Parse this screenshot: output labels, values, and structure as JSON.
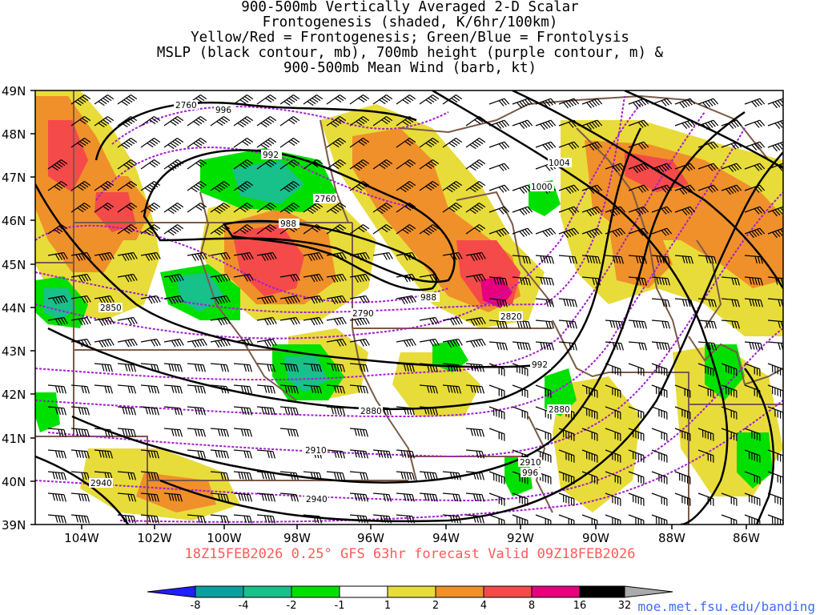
{
  "title_lines": [
    "900-500mb Vertically Averaged 2-D Scalar",
    "Frontogenesis (shaded, K/6hr/100km)",
    "Yellow/Red = Frontogenesis;  Green/Blue = Frontolysis",
    "MSLP (black contour, mb), 700mb height (purple contour, m) &",
    "900-500mb Mean Wind (barb, kt)"
  ],
  "valid_line": "18Z15FEB2026 0.25° GFS 63hr forecast Valid 09Z18FEB2026",
  "credit": "moe.met.fsu.edu/banding",
  "lat_labels": [
    "49N",
    "48N",
    "47N",
    "46N",
    "45N",
    "44N",
    "43N",
    "42N",
    "41N",
    "40N",
    "39N"
  ],
  "lon_labels": [
    "104W",
    "102W",
    "100W",
    "98W",
    "96W",
    "94W",
    "92W",
    "90W",
    "88W",
    "86W"
  ],
  "colorbar": {
    "ticks": [
      "-8",
      "-4",
      "-2",
      "-1",
      "1",
      "2",
      "4",
      "8",
      "16",
      "32"
    ],
    "colors": [
      "#1f1fff",
      "#0aa0a0",
      "#18c08a",
      "#00e000",
      "#ffffff",
      "#e8dc3a",
      "#f0902a",
      "#f54a4a",
      "#e6007e",
      "#000000",
      "#aaaaaa"
    ]
  },
  "shading_colors": {
    "yellow": "#e8dc3a",
    "orange": "#f0902a",
    "red": "#f54a4a",
    "magenta": "#e6007e",
    "green": "#00e000",
    "teal": "#18c08a"
  },
  "line_colors": {
    "mslp": "#000000",
    "height700": "#a31fd1",
    "borders": "#7a5a48"
  },
  "mslp_labels": [
    "996",
    "992",
    "988",
    "988",
    "992",
    "996",
    "1000",
    "1004"
  ],
  "height_labels": [
    "2760",
    "2760",
    "2790",
    "2820",
    "2850",
    "2880",
    "2880",
    "2910",
    "2910",
    "2940",
    "2940"
  ]
}
